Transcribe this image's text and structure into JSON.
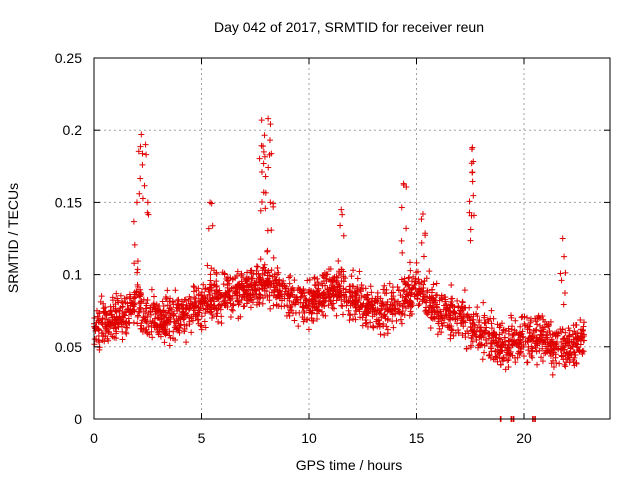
{
  "chart_data": {
    "type": "scatter",
    "title": "Day 042 of 2017, SRMTID for receiver reun",
    "xlabel": "GPS time / hours",
    "ylabel": "SRMTID / TECUs",
    "xlim": [
      0,
      24
    ],
    "ylim": [
      0,
      0.25
    ],
    "x_ticks": [
      "0",
      "5",
      "10",
      "15",
      "20"
    ],
    "x_tick_values": [
      0,
      5,
      10,
      15,
      20
    ],
    "y_ticks": [
      "0",
      "0.05",
      "0.1",
      "0.15",
      "0.2",
      "0.25"
    ],
    "y_tick_values": [
      0,
      0.05,
      0.1,
      0.15,
      0.2,
      0.25
    ],
    "grid": true,
    "marker": "plus",
    "color": "#e00000",
    "series": [
      {
        "name": "SRMTID",
        "time_range_hours": [
          0,
          22.8
        ],
        "profile": [
          {
            "x": 0.0,
            "y": 0.065
          },
          {
            "x": 1.0,
            "y": 0.068
          },
          {
            "x": 2.0,
            "y": 0.08
          },
          {
            "x": 2.5,
            "y": 0.07
          },
          {
            "x": 4.0,
            "y": 0.07
          },
          {
            "x": 5.0,
            "y": 0.08
          },
          {
            "x": 6.0,
            "y": 0.085
          },
          {
            "x": 7.0,
            "y": 0.09
          },
          {
            "x": 8.0,
            "y": 0.095
          },
          {
            "x": 9.0,
            "y": 0.085
          },
          {
            "x": 10.0,
            "y": 0.08
          },
          {
            "x": 11.0,
            "y": 0.09
          },
          {
            "x": 12.0,
            "y": 0.085
          },
          {
            "x": 13.0,
            "y": 0.075
          },
          {
            "x": 14.0,
            "y": 0.08
          },
          {
            "x": 15.0,
            "y": 0.09
          },
          {
            "x": 16.0,
            "y": 0.075
          },
          {
            "x": 17.0,
            "y": 0.07
          },
          {
            "x": 18.0,
            "y": 0.06
          },
          {
            "x": 19.0,
            "y": 0.05
          },
          {
            "x": 20.0,
            "y": 0.058
          },
          {
            "x": 21.0,
            "y": 0.055
          },
          {
            "x": 22.0,
            "y": 0.05
          },
          {
            "x": 22.8,
            "y": 0.055
          }
        ],
        "spikes": [
          {
            "x": 2.2,
            "y": 0.197
          },
          {
            "x": 2.4,
            "y": 0.19
          },
          {
            "x": 2.0,
            "y": 0.15
          },
          {
            "x": 5.4,
            "y": 0.15
          },
          {
            "x": 7.8,
            "y": 0.207
          },
          {
            "x": 8.1,
            "y": 0.208
          },
          {
            "x": 7.9,
            "y": 0.185
          },
          {
            "x": 8.2,
            "y": 0.15
          },
          {
            "x": 11.5,
            "y": 0.145
          },
          {
            "x": 14.4,
            "y": 0.163
          },
          {
            "x": 15.3,
            "y": 0.142
          },
          {
            "x": 17.6,
            "y": 0.188
          },
          {
            "x": 17.6,
            "y": 0.171
          },
          {
            "x": 21.8,
            "y": 0.125
          }
        ],
        "zero_points": [
          {
            "x": 18.9,
            "y": 0.0
          },
          {
            "x": 19.4,
            "y": 0.0
          },
          {
            "x": 19.5,
            "y": 0.0
          },
          {
            "x": 20.4,
            "y": 0.0
          },
          {
            "x": 20.5,
            "y": 0.0
          }
        ]
      }
    ]
  }
}
